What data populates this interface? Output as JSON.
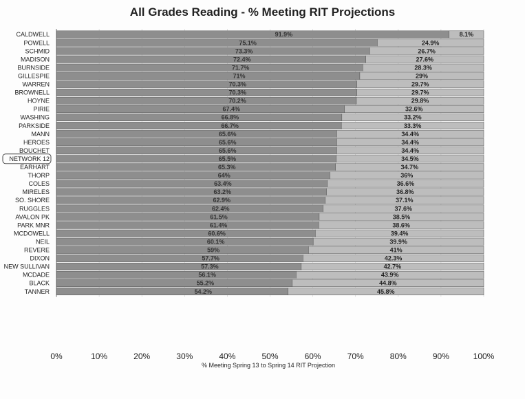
{
  "chart_data": {
    "type": "bar",
    "orientation": "horizontal",
    "stacked": "100%",
    "title": "All Grades Reading  - % Meeting RIT Projections",
    "xlabel": "% Meeting Spring 13 to Spring 14 RIT Projection",
    "ylabel": "",
    "xlim": [
      0,
      100
    ],
    "x_ticks": [
      "0%",
      "10%",
      "20%",
      "30%",
      "40%",
      "50%",
      "60%",
      "70%",
      "80%",
      "90%",
      "100%"
    ],
    "highlighted_category": "NETWORK 12",
    "categories": [
      "CALDWELL",
      "POWELL",
      "SCHMID",
      "MADISON",
      "BURNSIDE",
      "GILLESPIE",
      "WARREN",
      "BROWNELL",
      "HOYNE",
      "PIRIE",
      "WASHING",
      "PARKSIDE",
      "MANN",
      "HEROES",
      "BOUCHET",
      "NETWORK 12",
      "EARHART",
      "THORP",
      "COLES",
      "MIRELES",
      "SO. SHORE",
      "RUGGLES",
      "AVALON PK",
      "PARK MNR",
      "MCDOWELL",
      "NEIL",
      "REVERE",
      "DIXON",
      "NEW SULLIVAN",
      "MCDADE",
      "BLACK",
      "TANNER"
    ],
    "series": [
      {
        "values": [
          91.9,
          75.1,
          73.3,
          72.4,
          71.7,
          71,
          70.3,
          70.3,
          70.2,
          67.4,
          66.8,
          66.7,
          65.6,
          65.6,
          65.6,
          65.5,
          65.3,
          64,
          63.4,
          63.2,
          62.9,
          62.4,
          61.5,
          61.4,
          60.6,
          60.1,
          59,
          57.7,
          57.3,
          56.1,
          55.2,
          54.2
        ],
        "labels": [
          "91.9%",
          "75.1%",
          "73.3%",
          "72.4%",
          "71.7%",
          "71%",
          "70.3%",
          "70.3%",
          "70.2%",
          "67.4%",
          "66.8%",
          "66.7%",
          "65.6%",
          "65.6%",
          "65.6%",
          "65.5%",
          "65.3%",
          "64%",
          "63.4%",
          "63.2%",
          "62.9%",
          "62.4%",
          "61.5%",
          "61.4%",
          "60.6%",
          "60.1%",
          "59%",
          "57.7%",
          "57.3%",
          "56.1%",
          "55.2%",
          "54.2%"
        ],
        "color": "#8e8e8e"
      },
      {
        "values": [
          8.1,
          24.9,
          26.7,
          27.6,
          28.3,
          29,
          29.7,
          29.7,
          29.8,
          32.6,
          33.2,
          33.3,
          34.4,
          34.4,
          34.4,
          34.5,
          34.7,
          36,
          36.6,
          36.8,
          37.1,
          37.6,
          38.5,
          38.6,
          39.4,
          39.9,
          41,
          42.3,
          42.7,
          43.9,
          44.8,
          45.8
        ],
        "labels": [
          "8.1%",
          "24.9%",
          "26.7%",
          "27.6%",
          "28.3%",
          "29%",
          "29.7%",
          "29.7%",
          "29.8%",
          "32.6%",
          "33.2%",
          "33.3%",
          "34.4%",
          "34.4%",
          "34.4%",
          "34.5%",
          "34.7%",
          "36%",
          "36.6%",
          "36.8%",
          "37.1%",
          "37.6%",
          "38.5%",
          "38.6%",
          "39.4%",
          "39.9%",
          "41%",
          "42.3%",
          "42.7%",
          "43.9%",
          "44.8%",
          "45.8%"
        ],
        "color": "#bdbdbd"
      }
    ]
  }
}
